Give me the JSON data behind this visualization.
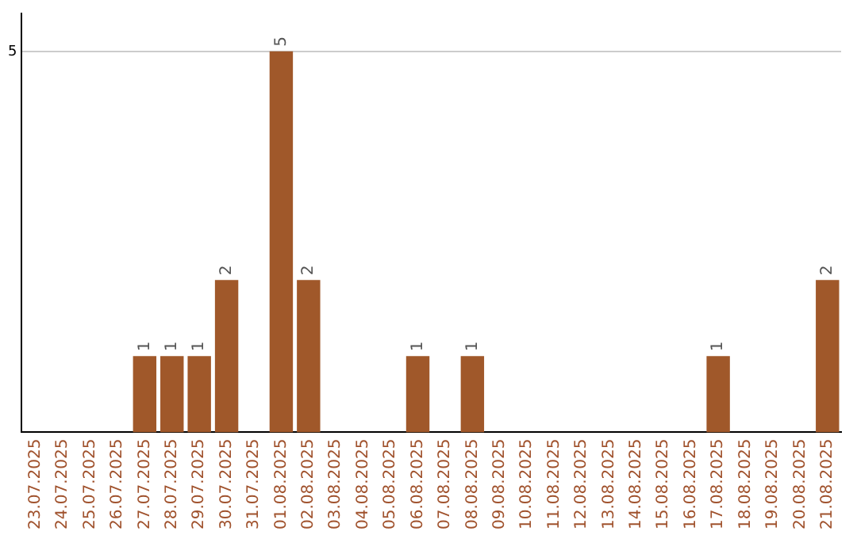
{
  "chart_data": {
    "type": "bar",
    "categories": [
      "23.07.2025",
      "24.07.2025",
      "25.07.2025",
      "26.07.2025",
      "27.07.2025",
      "28.07.2025",
      "29.07.2025",
      "30.07.2025",
      "31.07.2025",
      "01.08.2025",
      "02.08.2025",
      "03.08.2025",
      "04.08.2025",
      "05.08.2025",
      "06.08.2025",
      "07.08.2025",
      "08.08.2025",
      "09.08.2025",
      "10.08.2025",
      "11.08.2025",
      "12.08.2025",
      "13.08.2025",
      "14.08.2025",
      "15.08.2025",
      "16.08.2025",
      "17.08.2025",
      "18.08.2025",
      "19.08.2025",
      "20.08.2025",
      "21.08.2025"
    ],
    "values": [
      0,
      0,
      0,
      0,
      1,
      1,
      1,
      2,
      0,
      5,
      2,
      0,
      0,
      0,
      1,
      0,
      1,
      0,
      0,
      0,
      0,
      0,
      0,
      0,
      0,
      1,
      0,
      0,
      0,
      2
    ],
    "color": "#a0582a",
    "value_labels": [
      null,
      null,
      null,
      null,
      "1",
      "1",
      "1",
      "2",
      null,
      "5",
      "2",
      null,
      null,
      null,
      "1",
      null,
      "1",
      null,
      null,
      null,
      null,
      null,
      null,
      null,
      null,
      "1",
      null,
      null,
      null,
      "2"
    ],
    "ylim": [
      0,
      5.5
    ],
    "yticks": [
      5
    ],
    "grid": "y",
    "legend": false
  }
}
